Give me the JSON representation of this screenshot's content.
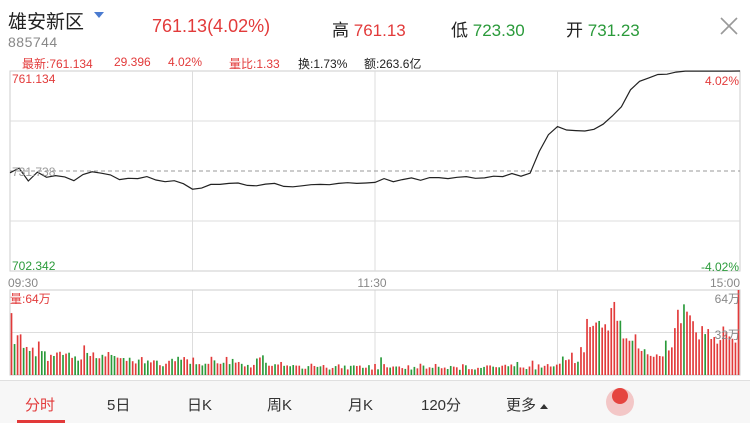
{
  "header": {
    "title": "雄安新区",
    "code": "885744",
    "price": "761.13",
    "change_pct": "(4.02%)",
    "high_label": "高",
    "high_value": "761.13",
    "low_label": "低",
    "low_value": "723.30",
    "open_label": "开",
    "open_value": "731.23"
  },
  "infobar": {
    "latest": "最新:761.134",
    "change": "29.396",
    "pct": "4.02%",
    "volume_ratio": "量比:1.33",
    "turnover": "换:1.73%",
    "amount": "额:263.6亿"
  },
  "tabs": [
    {
      "label": "分时",
      "active": true
    },
    {
      "label": "5日"
    },
    {
      "label": "日K"
    },
    {
      "label": "周K"
    },
    {
      "label": "月K"
    },
    {
      "label": "120分"
    },
    {
      "label": "更多"
    }
  ],
  "colors": {
    "up": "#e23a3a",
    "down": "#2a9a3a",
    "line": "#222222",
    "grid": "#cccccc"
  },
  "chart_data": [
    {
      "type": "line",
      "top_left_label": "761.134",
      "prev_close_label": "731.738",
      "bottom_left_label": "702.342",
      "top_right_label": "4.02%",
      "bottom_right_label": "-4.02%",
      "x_tick_labels": [
        "09:30",
        "11:30",
        "15:00"
      ],
      "y_min": 702.342,
      "y_max": 761.134,
      "prev_close": 731.738,
      "x_max": 240,
      "x": [
        0,
        3,
        6,
        9,
        12,
        15,
        18,
        21,
        24,
        27,
        30,
        33,
        36,
        39,
        42,
        45,
        48,
        51,
        54,
        57,
        60,
        63,
        66,
        69,
        72,
        75,
        78,
        81,
        84,
        87,
        90,
        93,
        96,
        99,
        102,
        105,
        108,
        111,
        114,
        117,
        120,
        123,
        126,
        129,
        132,
        135,
        138,
        141,
        144,
        147,
        150,
        153,
        156,
        159,
        162,
        165,
        168,
        171,
        174,
        177,
        180,
        183,
        186,
        189,
        192,
        195,
        198,
        201,
        204,
        207,
        210,
        213,
        216,
        219,
        222,
        225,
        228,
        231,
        234,
        237,
        240
      ],
      "values": [
        731.2,
        732.6,
        728.8,
        731.4,
        729.9,
        730.4,
        730.0,
        728.9,
        730.7,
        731.5,
        731.1,
        730.6,
        729.2,
        729.6,
        729.5,
        730.1,
        729.1,
        728.6,
        728.9,
        728.0,
        726.4,
        726.7,
        727.8,
        727.8,
        728.1,
        728.2,
        727.5,
        727.4,
        727.9,
        728.1,
        727.2,
        727.1,
        727.4,
        727.7,
        727.8,
        727.7,
        728.1,
        728.3,
        728.1,
        728.2,
        728.4,
        729.5,
        728.6,
        729.2,
        729.7,
        729.0,
        729.8,
        729.8,
        729.5,
        729.9,
        730.1,
        729.6,
        729.7,
        730.2,
        730.1,
        731.0,
        730.2,
        731.1,
        737.5,
        742.4,
        744.8,
        743.8,
        743.6,
        743.5,
        744.0,
        745.5,
        747.9,
        750.6,
        755.6,
        758.1,
        759.1,
        760.1,
        760.2,
        760.8,
        761.1,
        761.1,
        761.1,
        761.1,
        761.1,
        761.1,
        761.134
      ]
    },
    {
      "type": "bar",
      "title": "量:64万",
      "top_right_label": "64万",
      "mid_right_label": "32万",
      "y_max": 64,
      "unit": "万",
      "values": [
        46.6,
        23.3,
        29.9,
        30.6,
        20.4,
        21.1,
        18.1,
        20.6,
        14.1,
        25.2,
        18.0,
        17.8,
        10.6,
        15.2,
        14.3,
        16.9,
        17.5,
        15.1,
        16.1,
        16.8,
        12.9,
        14.0,
        10.8,
        11.7,
        22.3,
        16.6,
        14.3,
        17.0,
        12.7,
        12.6,
        15.2,
        14.0,
        17.3,
        15.1,
        14.3,
        13.1,
        12.7,
        12.8,
        10.6,
        13.0,
        10.4,
        8.7,
        11.6,
        13.5,
        8.8,
        10.9,
        9.5,
        11.0,
        10.8,
        7.4,
        6.6,
        8.5,
        10.7,
        12.2,
        10.4,
        13.7,
        11.5,
        13.5,
        11.8,
        8.4,
        13.1,
        8.1,
        8.2,
        7.2,
        8.5,
        8.4,
        13.7,
        11.0,
        8.8,
        8.4,
        9.2,
        13.6,
        8.2,
        12.1,
        9.3,
        9.8,
        8.4,
        6.5,
        7.6,
        5.7,
        7.6,
        12.4,
        13.2,
        14.8,
        9.2,
        7.0,
        6.9,
        8.1,
        7.9,
        9.8,
        6.9,
        7.2,
        6.6,
        7.5,
        7.1,
        7.0,
        4.8,
        4.7,
        6.7,
        8.5,
        6.8,
        6.1,
        6.5,
        7.5,
        5.5,
        4.1,
        5.3,
        6.7,
        8.0,
        5.1,
        7.1,
        4.2,
        6.9,
        7.2,
        6.8,
        7.1,
        5.4,
        5.5,
        7.4,
        4.1,
        8.3,
        4.3,
        13.3,
        8.2,
        5.8,
        5.6,
        6.4,
        6.4,
        6.4,
        5.2,
        4.6,
        7.3,
        4.1,
        6.1,
        5.0,
        8.5,
        7.1,
        4.8,
        5.8,
        5.4,
        8.3,
        6.2,
        5.1,
        5.6,
        4.5,
        6.8,
        6.3,
        5.8,
        3.9,
        8.1,
        7.3,
        4.4,
        4.4,
        4.1,
        5.4,
        5.3,
        6.1,
        7.2,
        7.2,
        6.3,
        5.9,
        5.8,
        7.0,
        7.7,
        6.6,
        7.9,
        6.6,
        9.8,
        5.7,
        5.6,
        4.5,
        6.4,
        10.8,
        4.2,
        8.0,
        5.6,
        6.9,
        8.2,
        6.4,
        6.5,
        7.8,
        8.5,
        13.9,
        11.2,
        11.7,
        16.8,
        9.0,
        10.0,
        21.0,
        17.1,
        42.2,
        36.1,
        37.0,
        39.5,
        40.7,
        35.7,
        38.2,
        33.5,
        50.4,
        55.0,
        40.8,
        40.9,
        27.5,
        27.6,
        25.8,
        25.8,
        30.6,
        20.0,
        18.1,
        19.4,
        15.6,
        14.4,
        13.7,
        15.5,
        14.3,
        14.0,
        25.9,
        18.5,
        20.8,
        35.3,
        49.1,
        39.0,
        53.2,
        47.7,
        44.9,
        40.5,
        32.1,
        26.8,
        36.8,
        30.8,
        34.6,
        27.1,
        28.6,
        23.6,
        26.3,
        36.5,
        32.4,
        29.0,
        27.3,
        24.4,
        64.0
      ],
      "up": [
        1,
        0,
        1,
        1,
        0,
        1,
        0,
        1,
        0,
        1,
        0,
        0,
        1,
        1,
        0,
        1,
        1,
        0,
        1,
        0,
        1,
        0,
        0,
        1,
        1,
        0,
        1,
        1,
        0,
        1,
        0,
        1,
        1,
        0,
        0,
        1,
        1,
        0,
        1,
        0,
        1,
        1,
        0,
        1,
        0,
        0,
        1,
        1,
        0,
        1,
        0,
        1,
        1,
        0,
        1,
        0,
        0,
        1,
        1,
        0,
        1,
        0,
        1,
        0,
        0,
        1,
        1,
        0,
        1,
        1,
        0,
        1,
        0,
        0,
        1,
        1,
        0,
        1,
        0,
        1,
        1,
        0,
        1,
        0,
        0,
        1,
        1,
        0,
        1,
        1,
        0,
        1,
        0,
        0,
        1,
        1,
        0,
        1,
        0,
        1,
        1,
        0,
        0,
        1,
        1,
        0,
        1,
        0,
        1,
        1,
        0,
        1,
        0,
        0,
        1,
        1,
        0,
        1,
        0,
        1,
        1,
        0,
        0,
        1,
        1,
        0,
        1,
        0,
        1,
        1,
        0,
        1,
        0,
        0,
        1,
        1,
        0,
        1,
        1,
        0,
        1,
        0,
        1,
        1,
        0,
        0,
        1,
        1,
        0,
        1,
        0,
        1,
        1,
        0,
        1,
        0,
        0,
        1,
        1,
        0,
        1,
        0,
        1,
        1,
        0,
        1,
        0,
        0,
        1,
        1,
        0,
        1,
        1,
        0,
        1,
        0,
        1,
        1,
        1,
        0,
        1,
        1,
        0,
        1,
        1,
        1,
        1,
        0,
        1,
        1,
        1,
        1,
        1,
        1,
        0,
        1,
        1,
        1,
        1,
        1,
        1,
        0,
        1,
        1,
        1,
        0,
        1,
        1,
        1,
        0,
        1,
        1,
        1,
        1,
        1,
        1,
        0,
        1,
        1,
        1,
        1,
        1,
        0,
        1,
        1,
        1,
        1,
        1,
        1,
        0,
        1,
        1,
        1,
        1,
        1,
        1,
        1,
        1,
        1,
        1,
        1,
        1,
        1,
        1
      ]
    }
  ]
}
